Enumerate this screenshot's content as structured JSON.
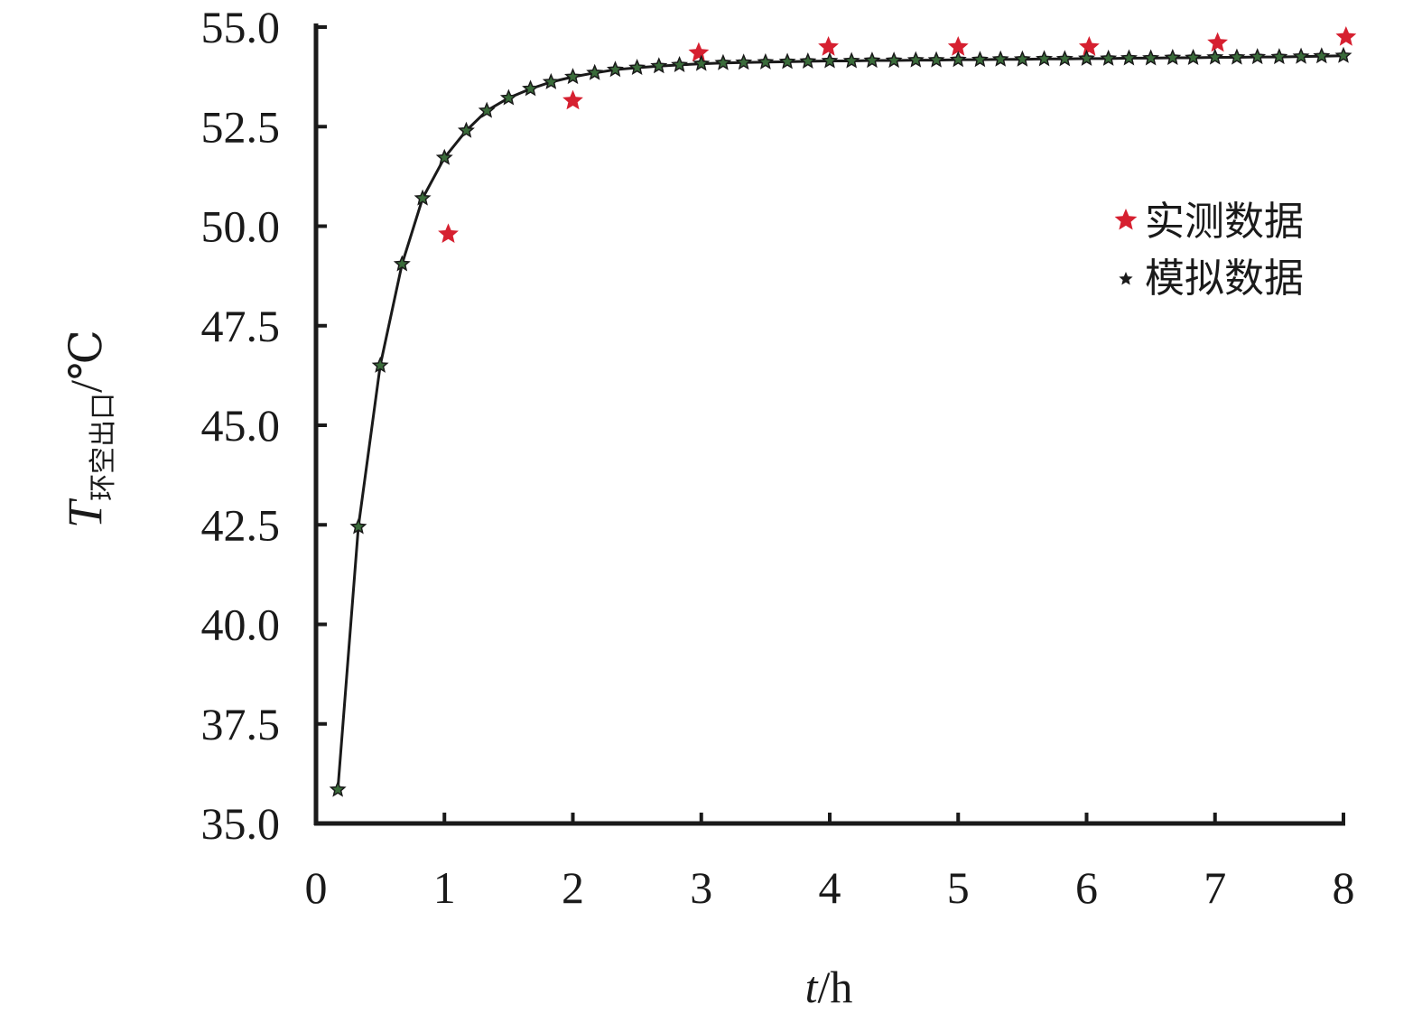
{
  "chart_data": {
    "type": "scatter",
    "title": "",
    "xlabel": {
      "var": "t",
      "unit": "/h"
    },
    "ylabel": {
      "var": "T",
      "subscript": "环空出口",
      "unit": "/℃"
    },
    "xlim": [
      0,
      8
    ],
    "ylim": [
      35.0,
      55.0
    ],
    "xticks": [
      "0",
      "1",
      "2",
      "3",
      "4",
      "5",
      "6",
      "7",
      "8"
    ],
    "yticks": [
      "35.0",
      "37.5",
      "40.0",
      "42.5",
      "45.0",
      "47.5",
      "50.0",
      "52.5",
      "55.0"
    ],
    "grid": false,
    "legend_position": "right",
    "series": [
      {
        "name": "实测数据",
        "marker": "star",
        "color": "#d62030",
        "points": [
          [
            1.03,
            49.8
          ],
          [
            2.0,
            53.15
          ],
          [
            2.98,
            54.35
          ],
          [
            3.99,
            54.5
          ],
          [
            5.0,
            54.5
          ],
          [
            6.02,
            54.5
          ],
          [
            7.02,
            54.6
          ],
          [
            8.02,
            54.75
          ]
        ]
      },
      {
        "name": "模拟数据",
        "marker": "star",
        "color": "#1a1a1a",
        "marker_fill": "#3a6b3a",
        "line": true,
        "points": [
          [
            0.17,
            35.85
          ],
          [
            0.33,
            42.45
          ],
          [
            0.5,
            46.5
          ],
          [
            0.67,
            49.05
          ],
          [
            0.83,
            50.7
          ],
          [
            1.0,
            51.72
          ],
          [
            1.17,
            52.4
          ],
          [
            1.33,
            52.9
          ],
          [
            1.5,
            53.22
          ],
          [
            1.67,
            53.45
          ],
          [
            1.83,
            53.62
          ],
          [
            2.0,
            53.75
          ],
          [
            2.17,
            53.85
          ],
          [
            2.33,
            53.93
          ],
          [
            2.5,
            53.98
          ],
          [
            2.67,
            54.02
          ],
          [
            2.83,
            54.05
          ],
          [
            3.0,
            54.08
          ],
          [
            3.17,
            54.1
          ],
          [
            3.33,
            54.11
          ],
          [
            3.5,
            54.12
          ],
          [
            3.67,
            54.13
          ],
          [
            3.83,
            54.14
          ],
          [
            4.0,
            54.15
          ],
          [
            4.17,
            54.15
          ],
          [
            4.33,
            54.16
          ],
          [
            4.5,
            54.16
          ],
          [
            4.67,
            54.17
          ],
          [
            4.83,
            54.17
          ],
          [
            5.0,
            54.18
          ],
          [
            5.17,
            54.18
          ],
          [
            5.33,
            54.19
          ],
          [
            5.5,
            54.19
          ],
          [
            5.67,
            54.2
          ],
          [
            5.83,
            54.2
          ],
          [
            6.0,
            54.21
          ],
          [
            6.17,
            54.21
          ],
          [
            6.33,
            54.22
          ],
          [
            6.5,
            54.22
          ],
          [
            6.67,
            54.23
          ],
          [
            6.83,
            54.23
          ],
          [
            7.0,
            54.24
          ],
          [
            7.17,
            54.24
          ],
          [
            7.33,
            54.25
          ],
          [
            7.5,
            54.25
          ],
          [
            7.67,
            54.26
          ],
          [
            7.83,
            54.27
          ],
          [
            8.0,
            54.28
          ]
        ]
      }
    ]
  }
}
